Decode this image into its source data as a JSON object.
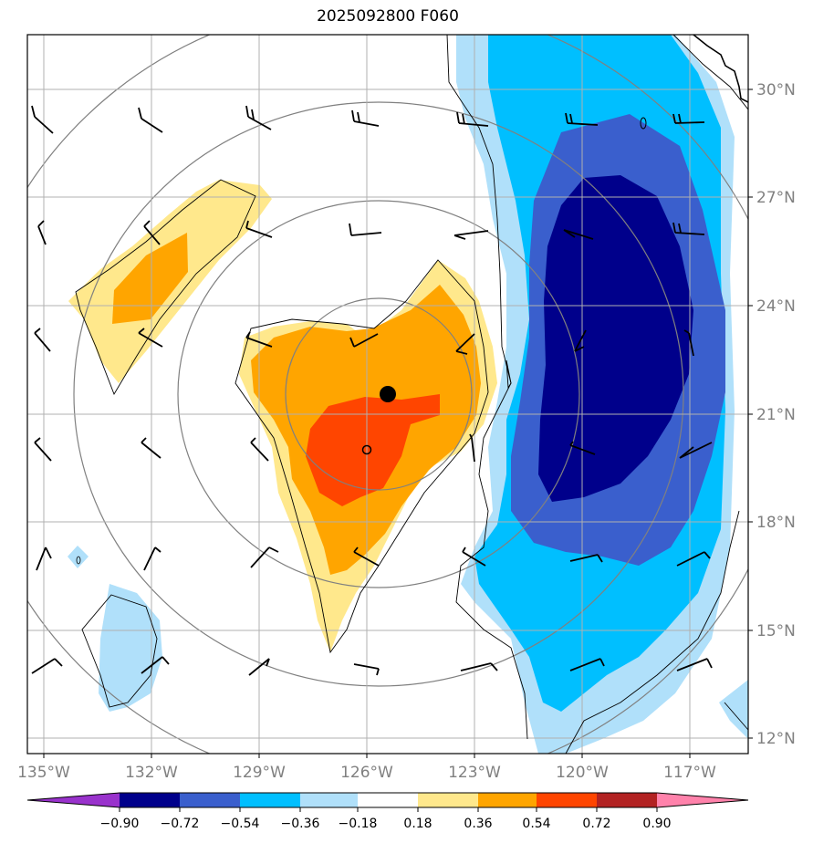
{
  "title": "2025092800 F060",
  "map": {
    "lon_labels": [
      "135°W",
      "132°W",
      "129°W",
      "126°W",
      "123°W",
      "120°W",
      "117°W"
    ],
    "lat_labels": [
      "30°N",
      "27°N",
      "24°N",
      "21°N",
      "18°N",
      "15°N",
      "12°N"
    ],
    "storm_center_label": "storm-center-marker",
    "secondary_marker_label": "secondary-center-marker"
  },
  "colorbar": {
    "ticks": [
      "−0.90",
      "−0.72",
      "−0.54",
      "−0.36",
      "−0.18",
      "0.18",
      "0.36",
      "0.54",
      "0.72",
      "0.90"
    ],
    "colors": [
      "#9932cc",
      "#00008b",
      "#3a5fcd",
      "#00bfff",
      "#b0e0fa",
      "#ffffff",
      "#ffe88c",
      "#ffa500",
      "#ff4500",
      "#b22222",
      "#ff82ab"
    ]
  }
}
